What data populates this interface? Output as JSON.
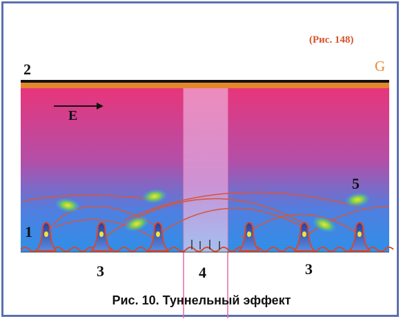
{
  "figure": {
    "reference": "(Рис. 148)",
    "caption": "Рис. 10. Туннельный эффект",
    "labels": {
      "top_plate": "2",
      "top_plate_right": "G",
      "field": "E",
      "atom_row": "1",
      "electron": "5",
      "region_left": "3",
      "barrier": "4",
      "region_right": "3"
    },
    "colors": {
      "frame": "#5a6fb0",
      "top_bar": "#e4862c",
      "gradient_top": "#e8357a",
      "gradient_bottom": "#2f8fe8",
      "barrier": "#ec9acb",
      "orbit_lines": "#d8563a",
      "reference_text": "#d8532a"
    },
    "icons": [
      "atom-peak-icon",
      "electron-cloud-icon",
      "arrow-right-icon"
    ]
  }
}
